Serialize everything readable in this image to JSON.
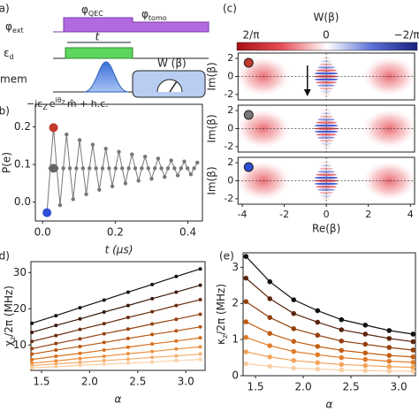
{
  "diagram": {
    "panel_label": "(a)",
    "phi_ext": {
      "base": "φ",
      "sub": "ext"
    },
    "phi_qec": {
      "base": "φ",
      "sub": "QEC"
    },
    "phi_tomo": {
      "base": "φ",
      "sub": "tomo"
    },
    "eps_d": {
      "base": "ε",
      "sub": "d"
    },
    "t_label": "t",
    "mem": "mem",
    "wigner_box": "W (β)",
    "hamiltonian": [
      "−iε",
      "Z",
      "e",
      "iθ",
      "z",
      "m̂ + h.c."
    ]
  },
  "wigner": {
    "panel_label": "(c)",
    "colorbar_max": "2/π",
    "colorbar_mid": "0",
    "colorbar_min": "−2/π",
    "colorbar_title": "W(β)",
    "ylabel": "Im(β)",
    "xlabel": "Re(β)",
    "xlim": [
      -4.2,
      4.2
    ],
    "ylim": [
      -2.6,
      2.6
    ],
    "xticks": [
      -4,
      -2,
      0,
      2,
      4
    ],
    "yticks": [
      -2,
      0,
      2
    ],
    "marker_colors": [
      "#c0392b",
      "#777777",
      "#2c4fd6"
    ]
  },
  "chart_data": [
    {
      "type": "line",
      "panel_label": "(b)",
      "xlabel": "t (μs)",
      "ylabel": "P(e)",
      "xlim": [
        -0.02,
        0.44
      ],
      "ylim": [
        -0.05,
        0.26
      ],
      "xticks": [
        {
          "value": 0,
          "label": "0.0"
        },
        {
          "value": 0.2,
          "label": "0.2"
        },
        {
          "value": 0.4,
          "label": "0.4"
        }
      ],
      "yticks": [
        {
          "value": 0,
          "label": "0.0"
        },
        {
          "value": 0.1,
          "label": "0.1"
        },
        {
          "value": 0.2,
          "label": "0.2"
        }
      ],
      "x": [
        0.012,
        0.021,
        0.03,
        0.039,
        0.048,
        0.057,
        0.066,
        0.075,
        0.084,
        0.093,
        0.102,
        0.111,
        0.12,
        0.129,
        0.138,
        0.147,
        0.156,
        0.165,
        0.174,
        0.183,
        0.192,
        0.201,
        0.21,
        0.219,
        0.228,
        0.237,
        0.246,
        0.255,
        0.264,
        0.273,
        0.282,
        0.291,
        0.3,
        0.309,
        0.318,
        0.327,
        0.336,
        0.345,
        0.354,
        0.363,
        0.372,
        0.381,
        0.39,
        0.399,
        0.408,
        0.417,
        0.426
      ],
      "series": [
        {
          "color": "#777777",
          "values": [
            -0.028,
            0.09,
            0.198,
            0.09,
            -0.008,
            0.09,
            0.18,
            0.09,
            0.008,
            0.09,
            0.165,
            0.09,
            0.021,
            0.09,
            0.153,
            0.09,
            0.033,
            0.09,
            0.142,
            0.09,
            0.042,
            0.09,
            0.134,
            0.09,
            0.05,
            0.09,
            0.127,
            0.09,
            0.057,
            0.09,
            0.121,
            0.09,
            0.062,
            0.09,
            0.116,
            0.09,
            0.067,
            0.09,
            0.111,
            0.09,
            0.071,
            0.09,
            0.108,
            0.09,
            0.074,
            0.09,
            0.105
          ]
        }
      ],
      "highlights": {
        "x": [
          0.03,
          0.03,
          0.012
        ],
        "values": [
          0.198,
          0.09,
          -0.028
        ],
        "colors": [
          "#c0392b",
          "#666666",
          "#2c4fd6"
        ]
      }
    },
    {
      "type": "line",
      "panel_label": "(d)",
      "xlabel": "α",
      "ylabel": [
        "χ",
        "z",
        "/2π (MHz)"
      ],
      "xlim": [
        1.39,
        3.2
      ],
      "ylim": [
        3,
        33
      ],
      "xticks": [
        1.5,
        {
          "value": 2,
          "label": "2.0"
        },
        2.5,
        {
          "value": 3,
          "label": "3.0"
        }
      ],
      "yticks": [
        10,
        20,
        30
      ],
      "x": [
        1.4,
        1.65,
        1.9,
        2.15,
        2.4,
        2.65,
        2.9,
        3.15
      ],
      "series": [
        {
          "color": "#111111",
          "values": [
            16,
            18.1,
            20.3,
            22.4,
            24.6,
            26.7,
            28.9,
            31
          ]
        },
        {
          "color": "#3a1a0a",
          "values": [
            13.5,
            15.4,
            17.2,
            19.1,
            20.9,
            22.8,
            24.6,
            26.5
          ]
        },
        {
          "color": "#6b2e0f",
          "values": [
            11,
            12.6,
            14.3,
            15.9,
            17.6,
            19.2,
            20.9,
            22.5
          ]
        },
        {
          "color": "#93400f",
          "values": [
            9,
            10.4,
            11.7,
            13.1,
            14.4,
            15.8,
            17.1,
            18.5
          ]
        },
        {
          "color": "#b85510",
          "values": [
            7.5,
            8.6,
            9.6,
            10.7,
            11.8,
            12.9,
            13.9,
            15
          ]
        },
        {
          "color": "#d8701c",
          "values": [
            6,
            6.9,
            7.7,
            8.6,
            9.4,
            10.3,
            11.1,
            12
          ]
        },
        {
          "color": "#ec8f3e",
          "values": [
            5,
            5.6,
            6.3,
            6.9,
            7.6,
            8.2,
            8.9,
            9.5
          ]
        },
        {
          "color": "#f4ae6e",
          "values": [
            4.3,
            4.8,
            5.2,
            5.7,
            6.1,
            6.6,
            7.0,
            7.5
          ]
        },
        {
          "color": "#f9cfa3",
          "values": [
            3.7,
            4.0,
            4.4,
            4.7,
            5.0,
            5.3,
            5.7,
            6.0
          ]
        }
      ]
    },
    {
      "type": "line",
      "panel_label": "(e)",
      "xlabel": "α",
      "ylabel": [
        "κ",
        "z",
        "/2π (MHz)"
      ],
      "xlim": [
        1.37,
        3.175
      ],
      "ylim": [
        0,
        3.4
      ],
      "xticks": [
        1.5,
        {
          "value": 2,
          "label": "2.0"
        },
        2.5,
        {
          "value": 3,
          "label": "3.0"
        }
      ],
      "yticks": [
        0,
        1,
        2,
        3
      ],
      "x": [
        1.4,
        1.65,
        1.9,
        2.15,
        2.4,
        2.65,
        2.9,
        3.15
      ],
      "series": [
        {
          "color": "#111111",
          "values": [
            3.3,
            2.6,
            2.1,
            1.8,
            1.55,
            1.4,
            1.25,
            1.15
          ]
        },
        {
          "color": "#5a250c",
          "values": [
            2.7,
            2.13,
            1.72,
            1.48,
            1.27,
            1.15,
            1.03,
            0.94
          ]
        },
        {
          "color": "#93400f",
          "values": [
            2.05,
            1.61,
            1.3,
            1.12,
            0.96,
            0.87,
            0.78,
            0.71
          ]
        },
        {
          "color": "#c25e14",
          "values": [
            1.49,
            1.17,
            0.95,
            0.81,
            0.7,
            0.63,
            0.56,
            0.52
          ]
        },
        {
          "color": "#e07d2a",
          "values": [
            1.06,
            0.83,
            0.67,
            0.58,
            0.5,
            0.45,
            0.4,
            0.37
          ]
        },
        {
          "color": "#f2a45c",
          "values": [
            0.66,
            0.52,
            0.42,
            0.36,
            0.31,
            0.28,
            0.25,
            0.23
          ]
        },
        {
          "color": "#f9cfa3",
          "values": [
            0.33,
            0.26,
            0.21,
            0.18,
            0.16,
            0.14,
            0.13,
            0.12
          ]
        }
      ]
    }
  ]
}
